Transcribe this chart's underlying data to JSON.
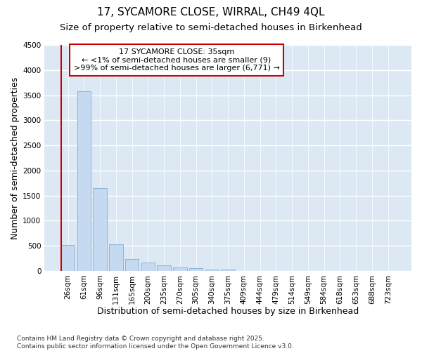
{
  "title1": "17, SYCAMORE CLOSE, WIRRAL, CH49 4QL",
  "title2": "Size of property relative to semi-detached houses in Birkenhead",
  "xlabel": "Distribution of semi-detached houses by size in Birkenhead",
  "ylabel": "Number of semi-detached properties",
  "categories": [
    "26sqm",
    "61sqm",
    "96sqm",
    "131sqm",
    "165sqm",
    "200sqm",
    "235sqm",
    "270sqm",
    "305sqm",
    "340sqm",
    "375sqm",
    "409sqm",
    "444sqm",
    "479sqm",
    "514sqm",
    "549sqm",
    "584sqm",
    "618sqm",
    "653sqm",
    "688sqm",
    "723sqm"
  ],
  "values": [
    510,
    3580,
    1650,
    530,
    235,
    160,
    110,
    70,
    50,
    30,
    20,
    0,
    0,
    0,
    0,
    0,
    0,
    0,
    0,
    0,
    0
  ],
  "bar_color": "#c5d9f0",
  "bar_edge_color": "#8ab4d8",
  "background_color": "#dce9f5",
  "grid_color": "#ffffff",
  "annotation_text": "17 SYCAMORE CLOSE: 35sqm\n← <1% of semi-detached houses are smaller (9)\n>99% of semi-detached houses are larger (6,771) →",
  "annotation_box_color": "#ffffff",
  "annotation_box_edge": "#cc0000",
  "red_line_x": -0.425,
  "ylim": [
    0,
    4500
  ],
  "yticks": [
    0,
    500,
    1000,
    1500,
    2000,
    2500,
    3000,
    3500,
    4000,
    4500
  ],
  "footnote": "Contains HM Land Registry data © Crown copyright and database right 2025.\nContains public sector information licensed under the Open Government Licence v3.0.",
  "title_fontsize": 11,
  "subtitle_fontsize": 9.5,
  "tick_fontsize": 7.5,
  "label_fontsize": 9,
  "annotation_fontsize": 8,
  "footnote_fontsize": 6.5
}
